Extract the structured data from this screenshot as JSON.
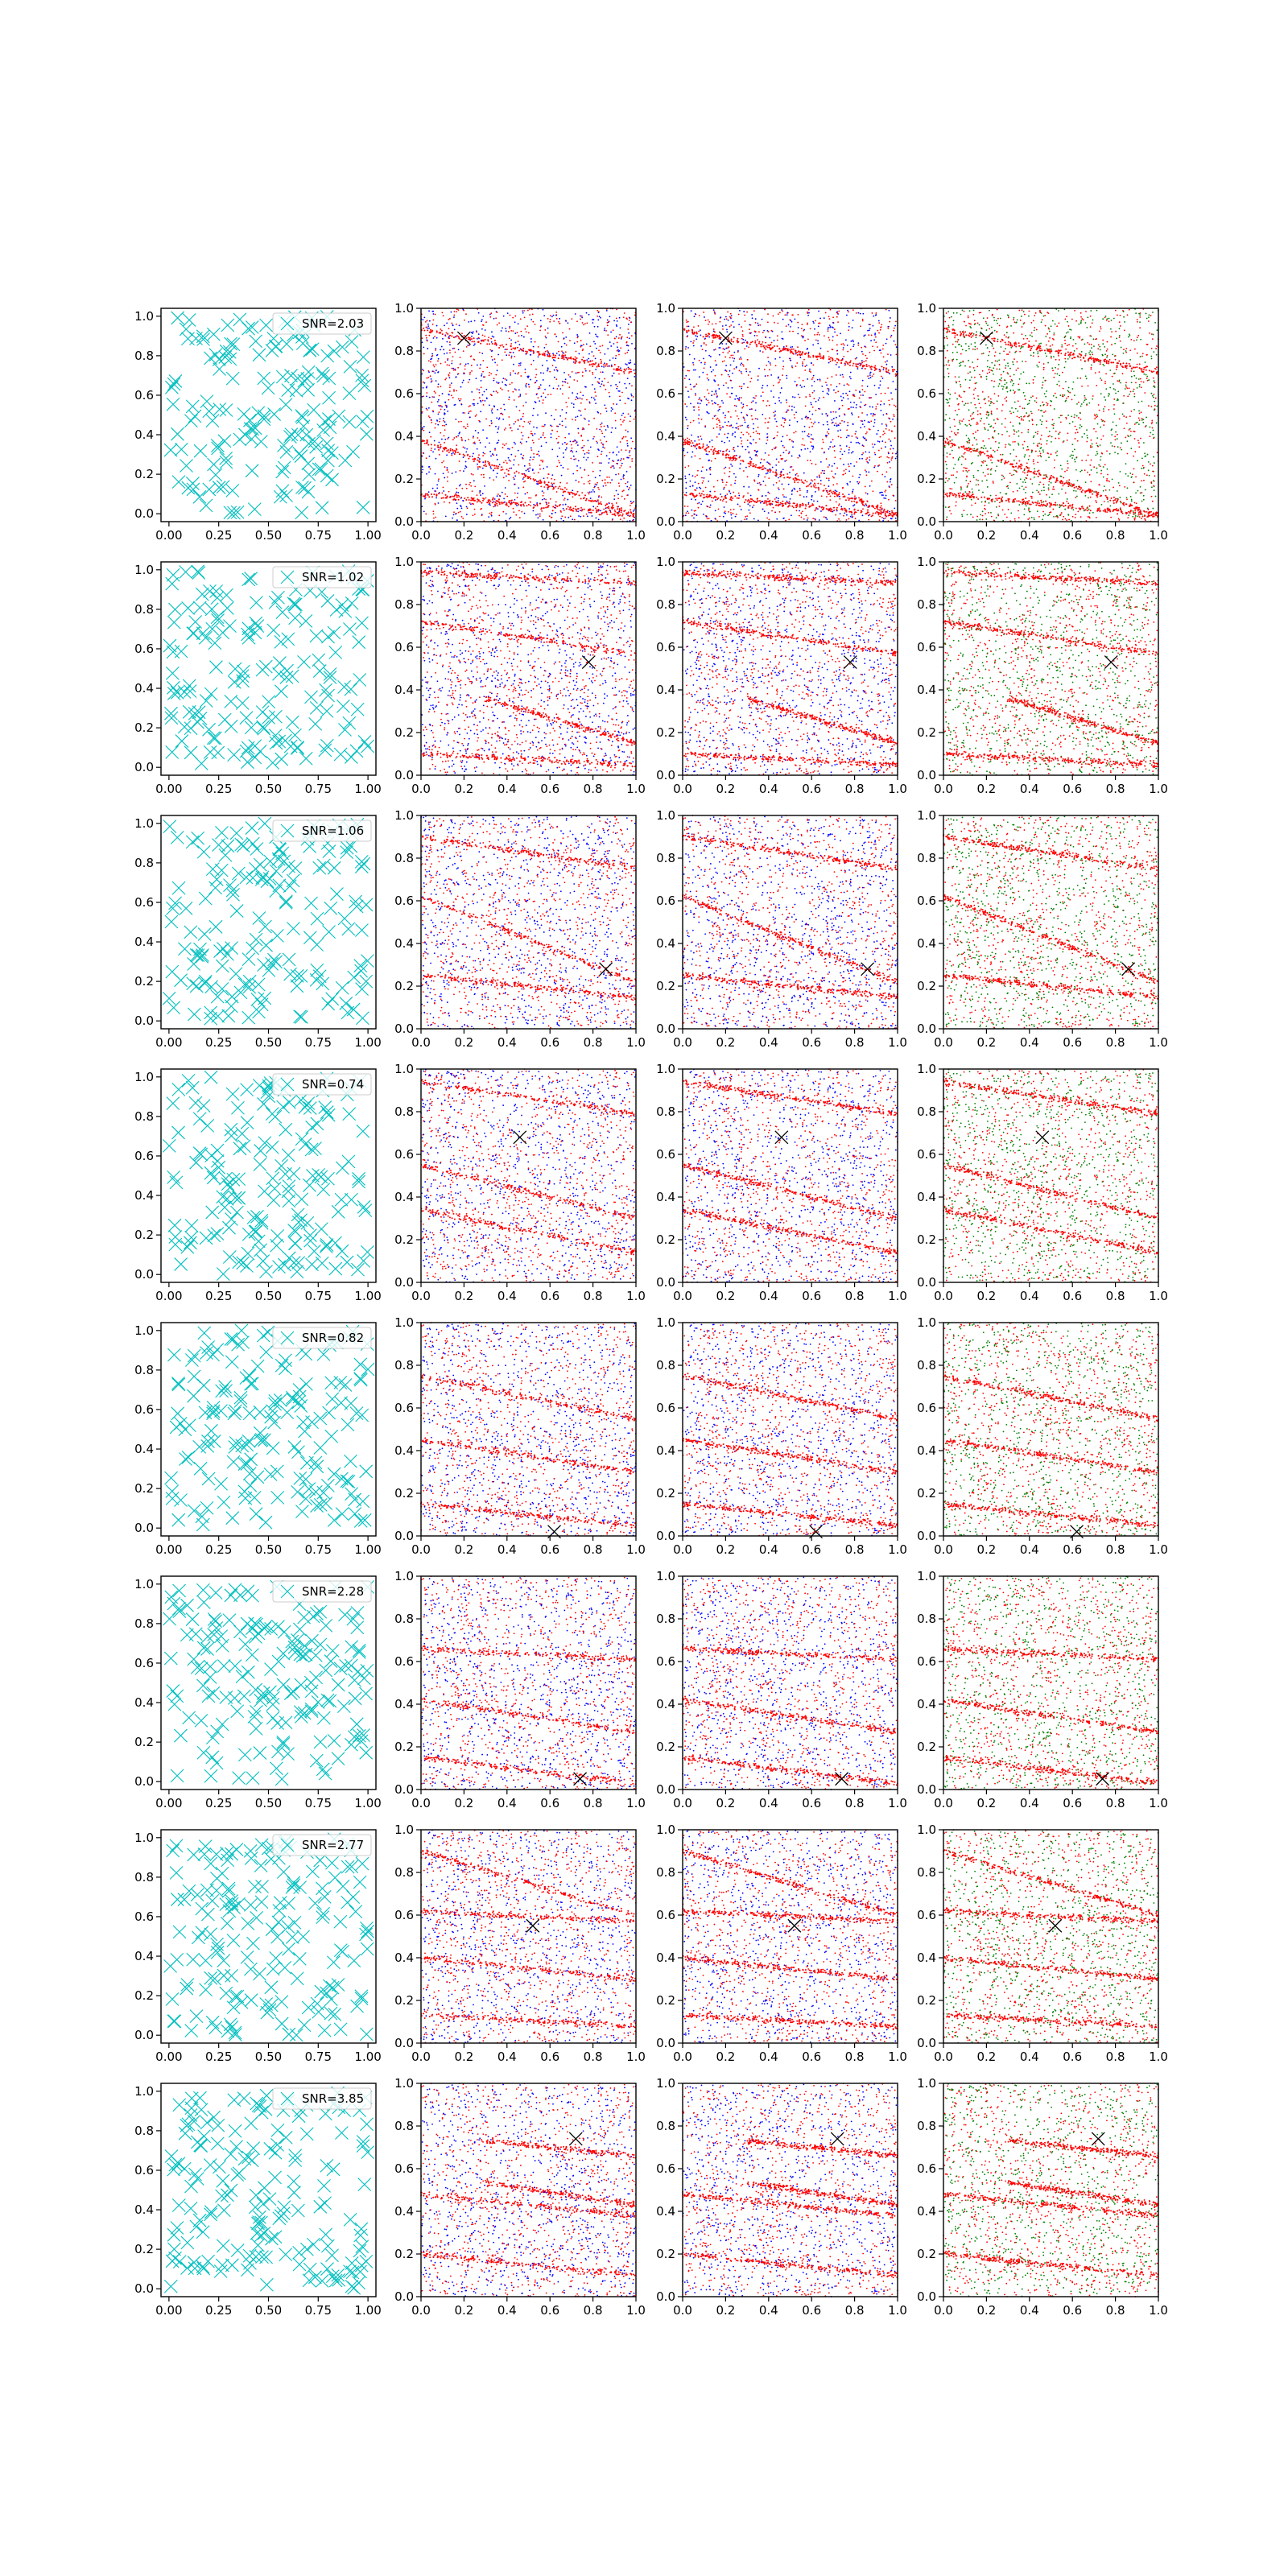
{
  "figure": {
    "rows": 8,
    "cols": 4,
    "background": "#ffffff",
    "colors": {
      "scatter_marker": "#00bfbf",
      "signal": "#ff0000",
      "noise_a": "#0000ff",
      "noise_b": "#008000",
      "source_marker": "#000000",
      "axis": "#000000"
    }
  },
  "axes": {
    "first_column": {
      "xlim": [
        -0.04,
        1.04
      ],
      "ylim": [
        -0.04,
        1.04
      ],
      "xticks": [
        "0.00",
        "0.25",
        "0.50",
        "0.75",
        "1.00"
      ],
      "xtick_values": [
        0,
        0.25,
        0.5,
        0.75,
        1.0
      ],
      "yticks": [
        "0.0",
        "0.2",
        "0.4",
        "0.6",
        "0.8",
        "1.0"
      ],
      "ytick_values": [
        0,
        0.2,
        0.4,
        0.6,
        0.8,
        1.0
      ]
    },
    "other_columns": {
      "xlim": [
        0,
        1
      ],
      "ylim": [
        0,
        1
      ],
      "xticks": [
        "0.0",
        "0.2",
        "0.4",
        "0.6",
        "0.8",
        "1.0"
      ],
      "xtick_values": [
        0,
        0.2,
        0.4,
        0.6,
        0.8,
        1.0
      ],
      "yticks": [
        "0.0",
        "0.2",
        "0.4",
        "0.6",
        "0.8",
        "1.0"
      ],
      "ytick_values": [
        0,
        0.2,
        0.4,
        0.6,
        0.8,
        1.0
      ]
    }
  },
  "chart_data": [
    {
      "type": "scatter",
      "row": 1,
      "legend": "SNR=2.03",
      "source": [
        0.2,
        0.86
      ],
      "streaks": [
        {
          "y0": 0.38,
          "slope": -0.35,
          "x_start": 0.0,
          "x_end": 1.0
        },
        {
          "y0": 0.13,
          "slope": -0.1,
          "x_start": 0.0,
          "x_end": 1.0
        },
        {
          "y0": 0.9,
          "slope": -0.2,
          "x_start": 0.0,
          "x_end": 1.0
        }
      ]
    },
    {
      "type": "scatter",
      "row": 2,
      "legend": "SNR=1.02",
      "source": [
        0.78,
        0.53
      ],
      "streaks": [
        {
          "y0": 0.45,
          "slope": -0.3,
          "x_start": 0.3,
          "x_end": 1.0
        },
        {
          "y0": 0.72,
          "slope": -0.15,
          "x_start": 0.0,
          "x_end": 1.0
        },
        {
          "y0": 0.95,
          "slope": -0.05,
          "x_start": 0.0,
          "x_end": 1.0
        },
        {
          "y0": 0.1,
          "slope": -0.05,
          "x_start": 0.0,
          "x_end": 1.0
        }
      ]
    },
    {
      "type": "scatter",
      "row": 3,
      "legend": "SNR=1.06",
      "source": [
        0.86,
        0.28
      ],
      "streaks": [
        {
          "y0": 0.62,
          "slope": -0.4,
          "x_start": 0.0,
          "x_end": 1.0
        },
        {
          "y0": 0.9,
          "slope": -0.15,
          "x_start": 0.0,
          "x_end": 1.0
        },
        {
          "y0": 0.25,
          "slope": -0.1,
          "x_start": 0.0,
          "x_end": 1.0
        }
      ]
    },
    {
      "type": "scatter",
      "row": 4,
      "legend": "SNR=0.74",
      "source": [
        0.46,
        0.68
      ],
      "streaks": [
        {
          "y0": 0.94,
          "slope": -0.15,
          "x_start": 0.0,
          "x_end": 1.0
        },
        {
          "y0": 0.34,
          "slope": -0.2,
          "x_start": 0.0,
          "x_end": 1.0
        },
        {
          "y0": 0.55,
          "slope": -0.25,
          "x_start": 0.0,
          "x_end": 1.0
        }
      ]
    },
    {
      "type": "scatter",
      "row": 5,
      "legend": "SNR=0.82",
      "source": [
        0.62,
        0.02
      ],
      "streaks": [
        {
          "y0": 0.75,
          "slope": -0.2,
          "x_start": 0.0,
          "x_end": 1.0
        },
        {
          "y0": 0.45,
          "slope": -0.15,
          "x_start": 0.0,
          "x_end": 1.0
        },
        {
          "y0": 0.15,
          "slope": -0.1,
          "x_start": 0.0,
          "x_end": 1.0
        }
      ]
    },
    {
      "type": "scatter",
      "row": 6,
      "legend": "SNR=2.28",
      "source": [
        0.74,
        0.05
      ],
      "streaks": [
        {
          "y0": 0.66,
          "slope": -0.05,
          "x_start": 0.0,
          "x_end": 1.0
        },
        {
          "y0": 0.15,
          "slope": -0.12,
          "x_start": 0.0,
          "x_end": 1.0
        },
        {
          "y0": 0.42,
          "slope": -0.15,
          "x_start": 0.0,
          "x_end": 1.0
        }
      ]
    },
    {
      "type": "scatter",
      "row": 7,
      "legend": "SNR=2.77",
      "source": [
        0.52,
        0.55
      ],
      "streaks": [
        {
          "y0": 0.9,
          "slope": -0.3,
          "x_start": 0.0,
          "x_end": 1.0
        },
        {
          "y0": 0.62,
          "slope": -0.05,
          "x_start": 0.0,
          "x_end": 1.0
        },
        {
          "y0": 0.13,
          "slope": -0.05,
          "x_start": 0.0,
          "x_end": 1.0
        },
        {
          "y0": 0.4,
          "slope": -0.1,
          "x_start": 0.0,
          "x_end": 1.0
        }
      ]
    },
    {
      "type": "scatter",
      "row": 8,
      "legend": "SNR=3.85",
      "source": [
        0.72,
        0.74
      ],
      "streaks": [
        {
          "y0": 0.76,
          "slope": -0.1,
          "x_start": 0.3,
          "x_end": 1.0
        },
        {
          "y0": 0.58,
          "slope": -0.15,
          "x_start": 0.3,
          "x_end": 1.0
        },
        {
          "y0": 0.48,
          "slope": -0.1,
          "x_start": 0.0,
          "x_end": 1.0
        },
        {
          "y0": 0.2,
          "slope": -0.1,
          "x_start": 0.0,
          "x_end": 1.0
        }
      ]
    }
  ]
}
